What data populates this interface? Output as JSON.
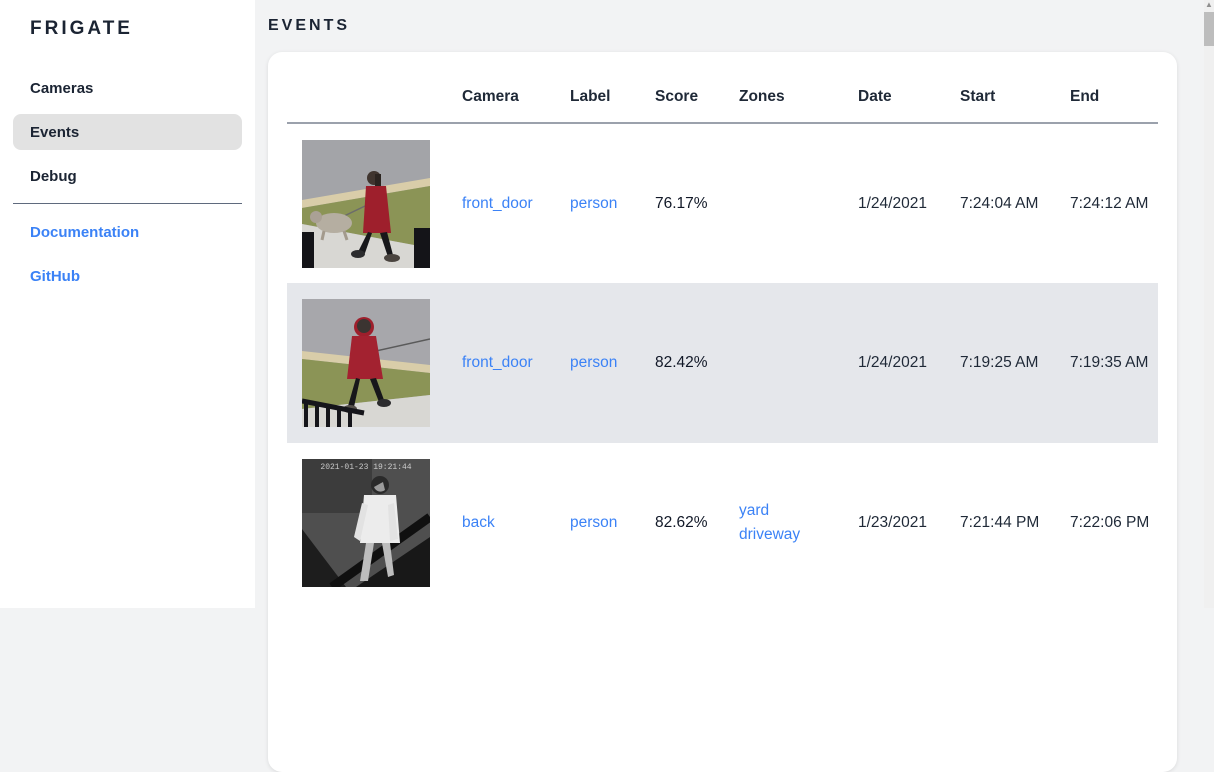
{
  "app": {
    "title": "FRIGATE"
  },
  "sidebar": {
    "items": [
      {
        "label": "Cameras",
        "active": false
      },
      {
        "label": "Events",
        "active": true
      },
      {
        "label": "Debug",
        "active": false
      }
    ],
    "links": [
      {
        "label": "Documentation"
      },
      {
        "label": "GitHub"
      }
    ]
  },
  "page": {
    "title": "EVENTS"
  },
  "table": {
    "columns": [
      "Camera",
      "Label",
      "Score",
      "Zones",
      "Date",
      "Start",
      "End"
    ],
    "rows": [
      {
        "thumb": "front_door_day_dogwalk",
        "thumb_description": "person in red coat walking a dog on sidewalk",
        "camera": "front_door",
        "label": "person",
        "score": "76.17%",
        "zones": [],
        "date": "1/24/2021",
        "start": "7:24:04 AM",
        "end": "7:24:12 AM",
        "highlighted": false
      },
      {
        "thumb": "front_door_day_hoodie",
        "thumb_description": "person in red hooded coat walking dog past railing",
        "camera": "front_door",
        "label": "person",
        "score": "82.42%",
        "zones": [],
        "date": "1/24/2021",
        "start": "7:19:25 AM",
        "end": "7:19:35 AM",
        "highlighted": true
      },
      {
        "thumb": "back_night_ir",
        "thumb_description": "night view of person in white shirt by truck bed",
        "camera": "back",
        "label": "person",
        "score": "82.62%",
        "zones": [
          "yard",
          "driveway"
        ],
        "date": "1/23/2021",
        "start": "7:21:44 PM",
        "end": "7:22:06 PM",
        "highlighted": false
      }
    ]
  },
  "colors": {
    "accent_link": "#3b82f6",
    "heading": "#1b2433",
    "row_highlight": "#e5e7eb",
    "sidebar_active": "#e2e2e2",
    "page_background": "#f2f3f4"
  }
}
